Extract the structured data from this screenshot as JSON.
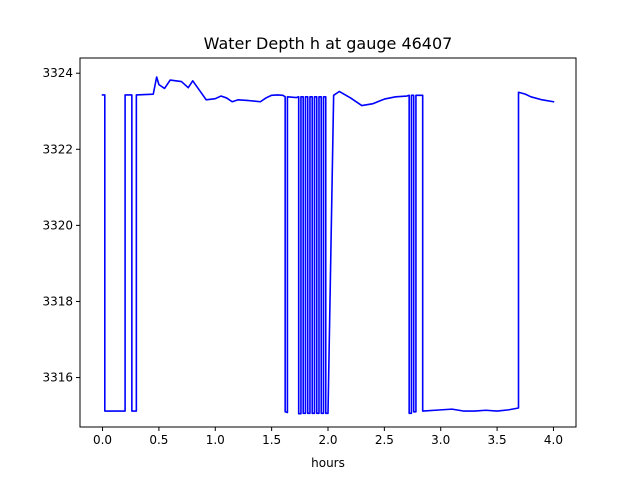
{
  "chart_data": {
    "type": "line",
    "title": "Water Depth h at gauge 46407",
    "xlabel": "hours",
    "ylabel": "",
    "xlim": [
      -0.2,
      4.2
    ],
    "ylim": [
      3314.7,
      3324.4
    ],
    "xticks": [
      0.0,
      0.5,
      1.0,
      1.5,
      2.0,
      2.5,
      3.0,
      3.5,
      4.0
    ],
    "xtick_labels": [
      "0.0",
      "0.5",
      "1.0",
      "1.5",
      "2.0",
      "2.5",
      "3.0",
      "3.5",
      "4.0"
    ],
    "yticks": [
      3316,
      3318,
      3320,
      3322,
      3324
    ],
    "ytick_labels": [
      "3316",
      "3318",
      "3320",
      "3322",
      "3324"
    ],
    "grid": false,
    "series": [
      {
        "color": "#0000ff",
        "x": [
          0.0,
          0.02,
          0.02,
          0.2,
          0.2,
          0.26,
          0.26,
          0.3,
          0.3,
          0.45,
          0.48,
          0.5,
          0.55,
          0.6,
          0.7,
          0.76,
          0.8,
          0.86,
          0.92,
          1.0,
          1.05,
          1.1,
          1.15,
          1.2,
          1.3,
          1.4,
          1.45,
          1.5,
          1.55,
          1.6,
          1.62,
          1.62,
          1.64,
          1.64,
          1.72,
          1.72,
          1.74,
          1.74,
          1.76,
          1.76,
          1.78,
          1.78,
          1.8,
          1.8,
          1.82,
          1.82,
          1.84,
          1.84,
          1.86,
          1.86,
          1.88,
          1.88,
          1.9,
          1.9,
          1.92,
          1.92,
          1.94,
          1.94,
          1.96,
          1.96,
          1.98,
          1.98,
          2.0,
          2.05,
          2.1,
          2.2,
          2.3,
          2.4,
          2.5,
          2.6,
          2.7,
          2.72,
          2.72,
          2.74,
          2.74,
          2.76,
          2.76,
          2.78,
          2.78,
          2.82,
          2.82,
          2.84,
          2.84,
          3.0,
          3.1,
          3.2,
          3.3,
          3.4,
          3.5,
          3.6,
          3.69,
          3.69,
          3.75,
          3.8,
          3.9,
          4.0
        ],
        "y": [
          3323.43,
          3323.43,
          3315.12,
          3315.12,
          3323.43,
          3323.43,
          3315.12,
          3315.12,
          3323.43,
          3323.45,
          3323.9,
          3323.7,
          3323.6,
          3323.82,
          3323.78,
          3323.62,
          3323.8,
          3323.55,
          3323.3,
          3323.33,
          3323.4,
          3323.35,
          3323.25,
          3323.3,
          3323.28,
          3323.25,
          3323.35,
          3323.42,
          3323.43,
          3323.42,
          3323.38,
          3315.1,
          3315.08,
          3323.38,
          3323.36,
          3323.36,
          3323.38,
          3315.05,
          3315.05,
          3323.38,
          3323.38,
          3315.06,
          3315.06,
          3323.38,
          3323.38,
          3315.06,
          3315.06,
          3323.38,
          3323.38,
          3315.06,
          3315.06,
          3323.38,
          3323.38,
          3315.06,
          3315.06,
          3323.38,
          3323.38,
          3315.06,
          3315.06,
          3323.38,
          3323.38,
          3315.06,
          3315.06,
          3323.42,
          3323.52,
          3323.35,
          3323.15,
          3323.2,
          3323.32,
          3323.38,
          3323.4,
          3323.42,
          3315.06,
          3315.06,
          3323.42,
          3323.42,
          3315.1,
          3315.1,
          3323.42,
          3323.42,
          3323.42,
          3323.42,
          3315.12,
          3315.15,
          3315.17,
          3315.12,
          3315.12,
          3315.14,
          3315.12,
          3315.15,
          3315.2,
          3323.5,
          3323.45,
          3323.38,
          3323.3,
          3323.25
        ]
      }
    ]
  }
}
